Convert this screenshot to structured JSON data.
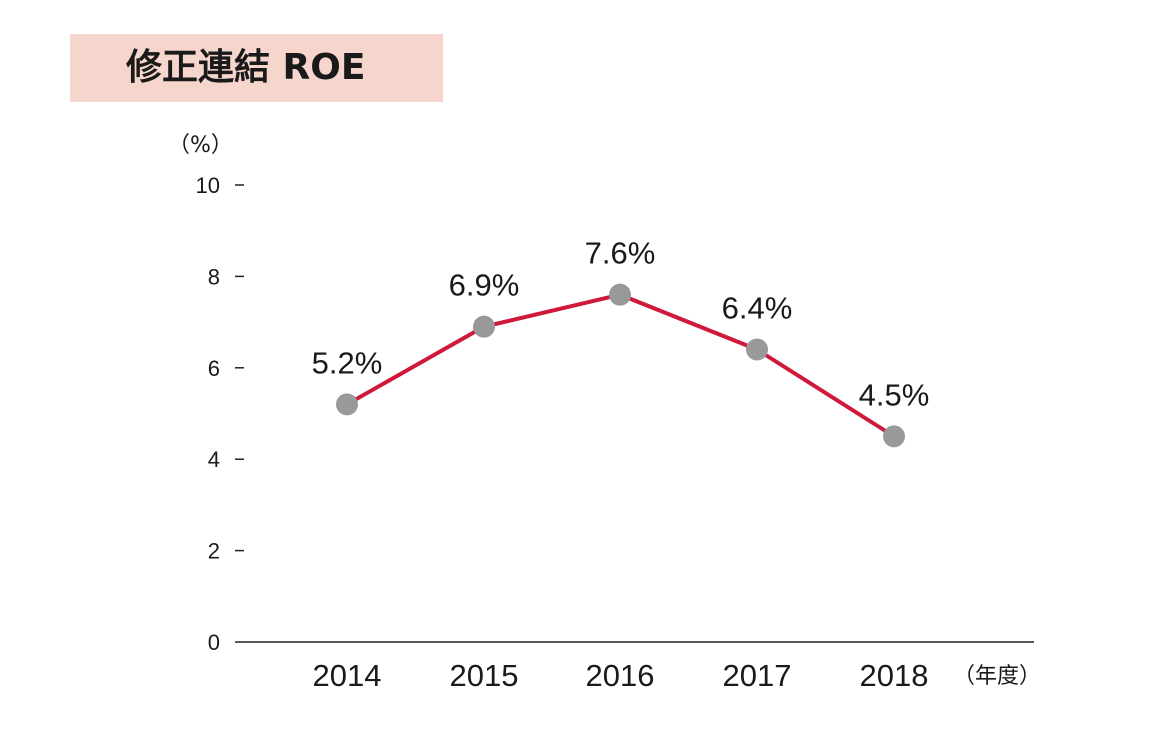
{
  "title": "修正連結 ROE",
  "colors": {
    "title_background": "#f6d6cc",
    "line": "#d0183a",
    "marker": "#999999",
    "axis": "#222222",
    "text": "#1a1a1a"
  },
  "chart_data": {
    "type": "line",
    "title": "修正連結 ROE",
    "ylabel": "（%）",
    "xlabel": "（年度）",
    "categories": [
      "2014",
      "2015",
      "2016",
      "2017",
      "2018"
    ],
    "series": [
      {
        "values": [
          5.2,
          6.9,
          7.6,
          6.4,
          4.5
        ],
        "data_labels": [
          "5.2%",
          "6.9%",
          "7.6%",
          "6.4%",
          "4.5%"
        ]
      }
    ],
    "ylim": [
      0,
      10
    ],
    "yticks": [
      0,
      2,
      4,
      6,
      8,
      10
    ],
    "grid": false,
    "legend": "none"
  }
}
